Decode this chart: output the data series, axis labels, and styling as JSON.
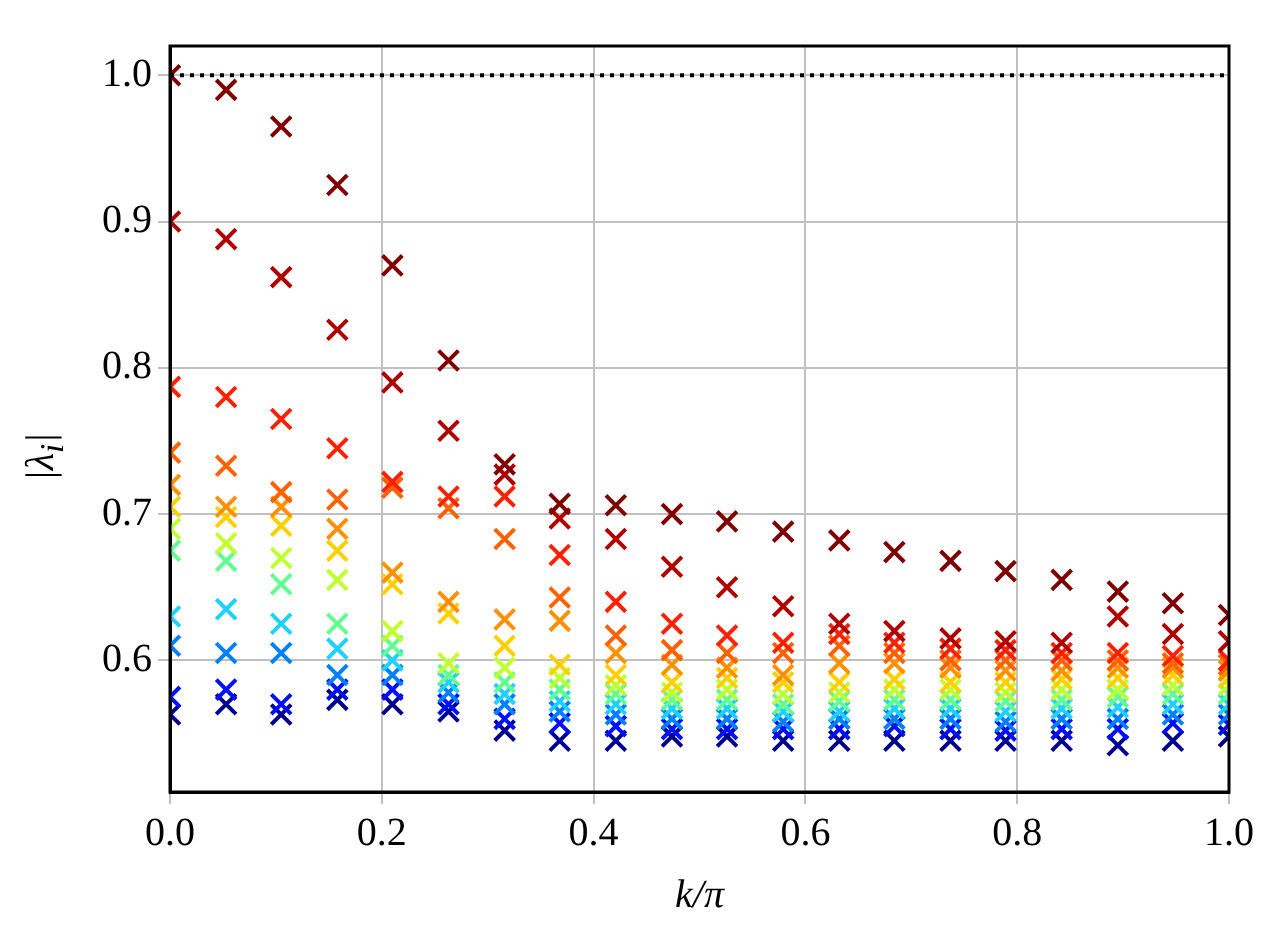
{
  "chart_data": {
    "type": "scatter",
    "xlabel": "k/π",
    "ylabel": "|λ$_{i}$|",
    "x": [
      0,
      0.053,
      0.105,
      0.158,
      0.21,
      0.263,
      0.316,
      0.368,
      0.421,
      0.474,
      0.526,
      0.579,
      0.632,
      0.684,
      0.737,
      0.789,
      0.842,
      0.895,
      0.947,
      1.0
    ],
    "series": [
      {
        "color": "#800000",
        "values": [
          1.0,
          0.99,
          0.965,
          0.925,
          0.87,
          0.805,
          0.734,
          0.707,
          0.706,
          0.7,
          0.695,
          0.688,
          0.682,
          0.674,
          0.668,
          0.661,
          0.655,
          0.647,
          0.639,
          0.631
        ]
      },
      {
        "color": "#b00000",
        "values": [
          0.9,
          0.888,
          0.862,
          0.826,
          0.79,
          0.757,
          0.727,
          0.697,
          0.683,
          0.664,
          0.65,
          0.637,
          0.625,
          0.62,
          0.615,
          0.613,
          0.612,
          0.63,
          0.618,
          0.613
        ]
      },
      {
        "color": "#ff2000",
        "values": [
          0.787,
          0.78,
          0.765,
          0.745,
          0.722,
          0.712,
          0.712,
          0.672,
          0.64,
          0.625,
          0.617,
          0.612,
          0.618,
          0.612,
          0.608,
          0.607,
          0.605,
          0.605,
          0.603,
          0.6
        ]
      },
      {
        "color": "#ff6000",
        "values": [
          0.742,
          0.733,
          0.715,
          0.71,
          0.718,
          0.704,
          0.683,
          0.643,
          0.617,
          0.607,
          0.605,
          0.605,
          0.61,
          0.605,
          0.6,
          0.6,
          0.6,
          0.6,
          0.598,
          0.597
        ]
      },
      {
        "color": "#ff9000",
        "values": [
          0.72,
          0.705,
          0.705,
          0.69,
          0.66,
          0.64,
          0.628,
          0.627,
          0.605,
          0.597,
          0.595,
          0.59,
          0.598,
          0.598,
          0.595,
          0.593,
          0.593,
          0.595,
          0.595,
          0.593
        ]
      },
      {
        "color": "#ffd000",
        "values": [
          0.705,
          0.698,
          0.692,
          0.675,
          0.652,
          0.632,
          0.61,
          0.597,
          0.59,
          0.585,
          0.588,
          0.585,
          0.585,
          0.587,
          0.585,
          0.585,
          0.587,
          0.588,
          0.59,
          0.588
        ]
      },
      {
        "color": "#c0ff30",
        "values": [
          0.69,
          0.68,
          0.67,
          0.655,
          0.62,
          0.598,
          0.595,
          0.588,
          0.583,
          0.578,
          0.58,
          0.577,
          0.578,
          0.58,
          0.58,
          0.578,
          0.58,
          0.58,
          0.583,
          0.583
        ]
      },
      {
        "color": "#60ff90",
        "values": [
          0.675,
          0.668,
          0.652,
          0.625,
          0.61,
          0.59,
          0.585,
          0.58,
          0.577,
          0.573,
          0.573,
          0.57,
          0.572,
          0.573,
          0.573,
          0.572,
          0.573,
          0.575,
          0.577,
          0.577
        ]
      },
      {
        "color": "#20d0ff",
        "values": [
          0.63,
          0.635,
          0.625,
          0.608,
          0.6,
          0.585,
          0.577,
          0.572,
          0.57,
          0.567,
          0.567,
          0.565,
          0.565,
          0.567,
          0.567,
          0.565,
          0.567,
          0.568,
          0.57,
          0.57
        ]
      },
      {
        "color": "#0080ff",
        "values": [
          0.61,
          0.605,
          0.605,
          0.59,
          0.59,
          0.578,
          0.57,
          0.565,
          0.563,
          0.56,
          0.56,
          0.558,
          0.56,
          0.56,
          0.56,
          0.558,
          0.56,
          0.56,
          0.563,
          0.563
        ]
      },
      {
        "color": "#0010ff",
        "values": [
          0.575,
          0.58,
          0.57,
          0.58,
          0.58,
          0.57,
          0.56,
          0.557,
          0.555,
          0.553,
          0.553,
          0.553,
          0.553,
          0.555,
          0.553,
          0.552,
          0.553,
          0.553,
          0.557,
          0.556
        ]
      },
      {
        "color": "#000090",
        "values": [
          0.563,
          0.57,
          0.563,
          0.573,
          0.57,
          0.565,
          0.552,
          0.545,
          0.545,
          0.548,
          0.548,
          0.545,
          0.545,
          0.545,
          0.545,
          0.545,
          0.545,
          0.542,
          0.545,
          0.548
        ]
      }
    ],
    "xlim": [
      0,
      1.0
    ],
    "xticks": [
      {
        "value": 0,
        "label": "0.0"
      },
      0.2,
      0.4,
      0.6,
      0.8,
      {
        "value": 1.0,
        "label": "1.0"
      }
    ],
    "ylim": [
      0.51,
      1.02
    ],
    "yticks": [
      0.6,
      0.7,
      0.8,
      0.9,
      {
        "value": 1.0,
        "label": "1.0"
      }
    ],
    "ref_lines": [
      {
        "axis": "y",
        "value": 1.0,
        "color": "#000000",
        "line_style": "dotted"
      }
    ],
    "grid": true,
    "legend": false,
    "marker": "cross"
  }
}
